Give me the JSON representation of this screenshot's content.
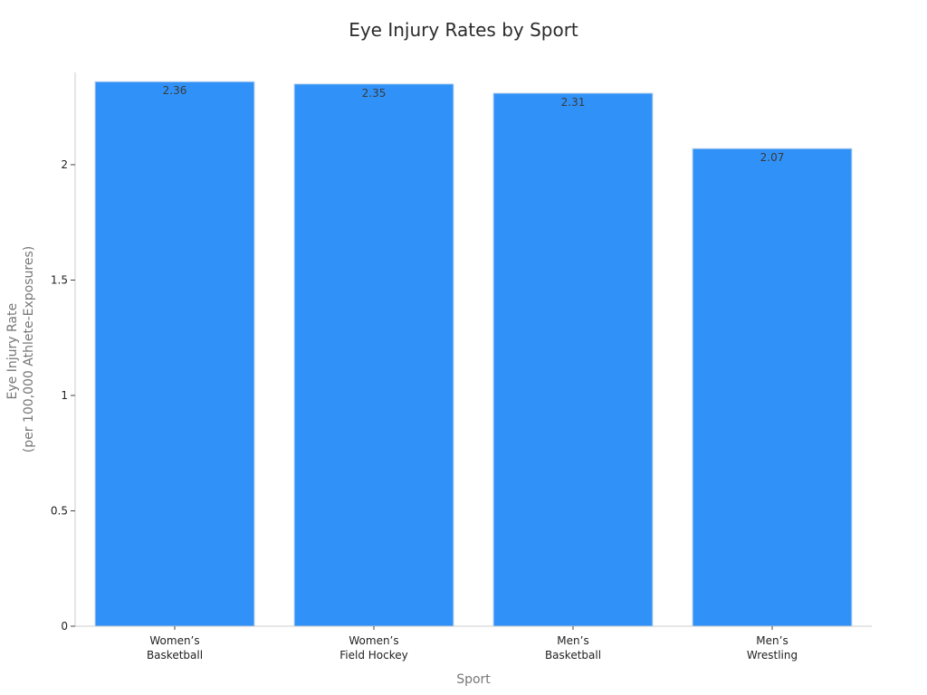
{
  "chart_data": {
    "type": "bar",
    "title": "Eye Injury Rates by Sport",
    "xlabel": "Sport",
    "ylabel": [
      "Eye Injury Rate",
      "(per 100,000 Athlete-Exposures)"
    ],
    "categories": [
      [
        "Women’s",
        "Basketball"
      ],
      [
        "Women’s",
        "Field Hockey"
      ],
      [
        "Men’s",
        "Basketball"
      ],
      [
        "Men’s",
        "Wrestling"
      ]
    ],
    "values": [
      2.36,
      2.35,
      2.31,
      2.07
    ],
    "data_labels": [
      "2.36",
      "2.35",
      "2.31",
      "2.07"
    ],
    "ylim": [
      0,
      2.4
    ],
    "yticks": [
      0,
      0.5,
      1,
      1.5,
      2
    ],
    "ytick_labels": [
      "0",
      "0.5",
      "1",
      "1.5",
      "2"
    ],
    "bar_color": "#3092f8",
    "grid": false,
    "legend": "none"
  }
}
